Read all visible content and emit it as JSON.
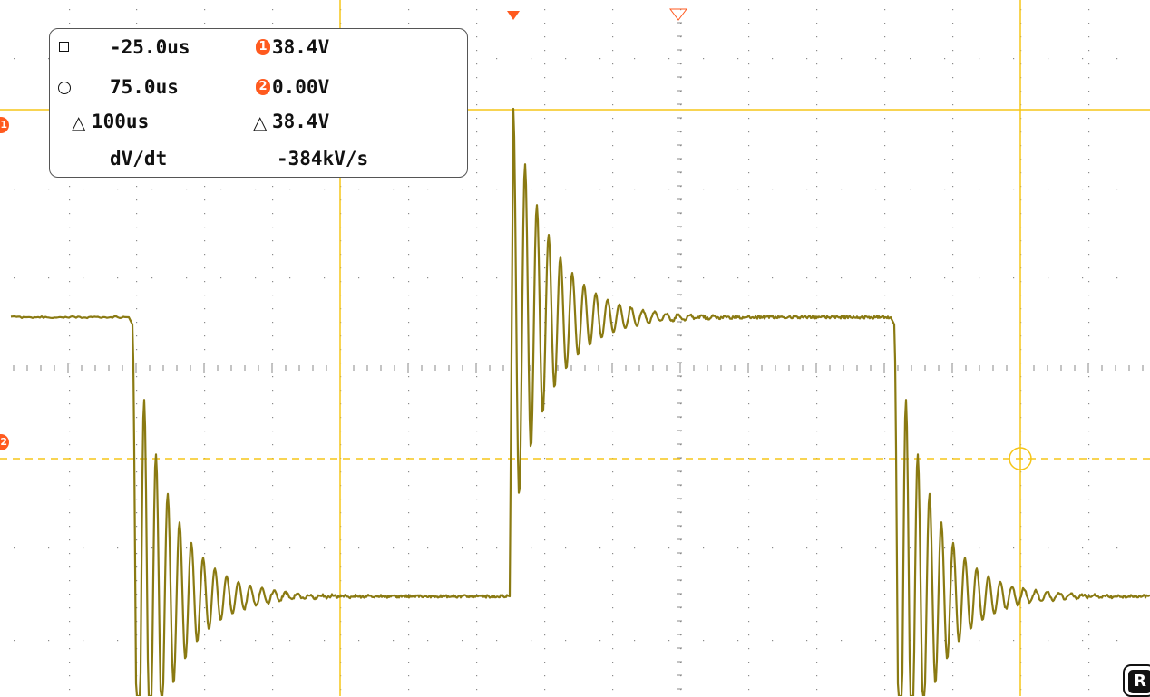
{
  "colors": {
    "background": "#ffffff",
    "grid_dot": "#8a8a8a",
    "cursor": "#f5c518",
    "trace": "#8a7a12",
    "channel_marker": "#ff5a1f"
  },
  "readout": {
    "row1": {
      "icon": "square-cursor-icon",
      "time": "-25.0us",
      "ch_badge": "1",
      "value": "38.4V"
    },
    "row2": {
      "icon": "circle-cursor-icon",
      "time": "75.0us",
      "ch_badge": "2",
      "value": "0.00V"
    },
    "row3": {
      "delta_time": "100us",
      "delta_value": "38.4V"
    },
    "row4": {
      "label": "dV/dt",
      "value": "-384kV/s"
    }
  },
  "markers": {
    "channel1_edge": "1",
    "channel2_edge": "2",
    "corner_button": "R"
  },
  "waveform": {
    "timebase": {
      "samples_divisions": 10
    },
    "segments": [
      {
        "level": "high"
      },
      {
        "level": "low"
      },
      {
        "level": "high"
      },
      {
        "level": "low"
      }
    ]
  }
}
